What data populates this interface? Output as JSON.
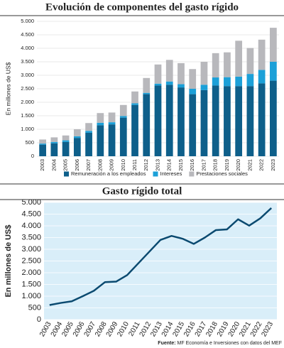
{
  "chart_data": [
    {
      "type": "stacked_bar",
      "title": "Evolución de componentes del gasto rígido",
      "ylabel": "En millones de US$",
      "categories": [
        "2003",
        "2004",
        "2005",
        "2006",
        "2007",
        "2008",
        "2009",
        "2010",
        "2011",
        "2012",
        "2013",
        "2014",
        "2015",
        "2016",
        "2017",
        "2018",
        "2019",
        "2020",
        "2021",
        "2022",
        "2023"
      ],
      "series": [
        {
          "name": "Remuneración a los empleados",
          "color": "#0e5f8a",
          "values": [
            430,
            480,
            530,
            680,
            870,
            1150,
            1180,
            1430,
            1900,
            2300,
            2620,
            2650,
            2550,
            2300,
            2450,
            2620,
            2600,
            2600,
            2600,
            2700,
            2800
          ]
        },
        {
          "name": "Intereses",
          "color": "#1ca0d8",
          "values": [
            40,
            50,
            60,
            60,
            70,
            90,
            80,
            60,
            60,
            50,
            70,
            120,
            120,
            200,
            200,
            300,
            330,
            350,
            450,
            500,
            700
          ]
        },
        {
          "name": "Prestaciones sociales",
          "color": "#b8b8bc",
          "values": [
            150,
            170,
            180,
            260,
            290,
            360,
            360,
            410,
            440,
            550,
            710,
            800,
            780,
            730,
            850,
            900,
            920,
            1330,
            960,
            1120,
            1260
          ]
        }
      ],
      "ylim": [
        0,
        5000
      ],
      "yticks": [
        0,
        500,
        {
          "value": 1000,
          "label": "1.000"
        },
        {
          "value": 1500,
          "label": "1.500"
        },
        {
          "value": 2000,
          "label": "2.000"
        },
        {
          "value": 2500,
          "label": "2.500"
        },
        {
          "value": 3000,
          "label": "3.000"
        },
        {
          "value": 3500,
          "label": "3.500"
        },
        {
          "value": 4000,
          "label": "4.000"
        },
        {
          "value": 4500,
          "label": "4.500"
        },
        {
          "value": 5000,
          "label": "5.000"
        }
      ],
      "grid": true,
      "legend": "bottom"
    },
    {
      "type": "line",
      "title": "Gasto rígido total",
      "ylabel": "En millones de US$",
      "color": "#0b4a70",
      "categories": [
        "2003",
        "2004",
        "2005",
        "2006",
        "2007",
        "2008",
        "2009",
        "2010",
        "2011",
        "2012",
        "2013",
        "2014",
        "2015",
        "2016",
        "2017",
        "2018",
        "2019",
        "2020",
        "2021",
        "2022",
        "2023"
      ],
      "values": [
        620,
        710,
        780,
        1000,
        1230,
        1600,
        1620,
        1900,
        2400,
        2900,
        3400,
        3570,
        3450,
        3230,
        3500,
        3820,
        3850,
        4280,
        4010,
        4320,
        4760
      ],
      "ylim": [
        0,
        5000
      ],
      "yticks": [
        0,
        500,
        {
          "value": 1000,
          "label": "1.000"
        },
        {
          "value": 1500,
          "label": "1.500"
        },
        {
          "value": 2000,
          "label": "2.000"
        },
        {
          "value": 2500,
          "label": "2.500"
        },
        {
          "value": 3000,
          "label": "3.000"
        },
        {
          "value": 3500,
          "label": "3.500"
        },
        {
          "value": 4000,
          "label": "4.000"
        },
        {
          "value": 4500,
          "label": "4.500"
        },
        {
          "value": 5000,
          "label": "5.000"
        }
      ],
      "grid": true
    }
  ],
  "source_label": "Fuente:",
  "source": "MF Economía e Inversiones con datos del MEF"
}
